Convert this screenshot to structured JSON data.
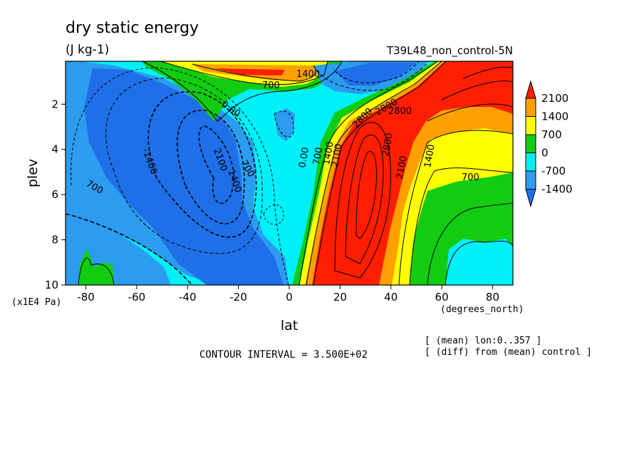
{
  "header": {
    "title": "dry static energy",
    "units": "(J kg-1)",
    "experiment": "T39L48_non_control-5N"
  },
  "footer": {
    "contour_interval": "CONTOUR INTERVAL = 3.500E+02",
    "note_mean": "[ (mean) lon:0..357 ]",
    "note_diff": "[ (diff) from (mean) control ]"
  },
  "colors": {
    "lt_-1400": "#1f6fe8",
    "-1400_-700": "#2b9cf0",
    "-700_0": "#00f0f8",
    "0_700": "#11cc11",
    "700_1400": "#ffff00",
    "1400_2100": "#ffa000",
    "gt_2100": "#ff1f00"
  },
  "chart_data": {
    "type": "heatmap",
    "title": "dry static energy",
    "subtitle": "(J kg-1)",
    "xlabel": "lat",
    "x_unit": "(degrees_north)",
    "ylabel": "plev",
    "y_unit": "(x1E4 Pa)",
    "xlim": [
      -88,
      88
    ],
    "ylim": [
      10,
      0.1
    ],
    "x_ticks": [
      -80,
      -60,
      -40,
      -20,
      0,
      20,
      40,
      60,
      80
    ],
    "y_ticks": [
      2,
      4,
      6,
      8,
      10
    ],
    "colorbar": {
      "levels": [
        -1400,
        -700,
        0,
        700,
        1400,
        2100
      ],
      "tick_labels": [
        "2100",
        "1400",
        "700",
        "0",
        "-700",
        "-1400"
      ]
    },
    "contour_labels": [
      "1400",
      "700",
      "0.00",
      "2100",
      "1400",
      "700",
      "0.00",
      "700",
      "1400",
      "2100",
      "2800",
      "2800",
      "2800",
      "2800",
      "2100",
      "1400",
      "700",
      "-1400",
      "-2100",
      "-1400"
    ],
    "approx_field_features": [
      {
        "lat": 32,
        "plev": 4.0,
        "value": 3000
      },
      {
        "lat": 75,
        "plev": 0.5,
        "value": 2800
      },
      {
        "lat": 20,
        "plev": 0.6,
        "value": 1500
      },
      {
        "lat": -30,
        "plev": 4.5,
        "value": -2300
      },
      {
        "lat": 20,
        "plev": 1.0,
        "value": -2000
      },
      {
        "lat": 70,
        "plev": 8.5,
        "value": -600
      },
      {
        "lat": -80,
        "plev": 9.0,
        "value": 300
      },
      {
        "lat": -5,
        "plev": 3.0,
        "value": -1000
      }
    ]
  }
}
